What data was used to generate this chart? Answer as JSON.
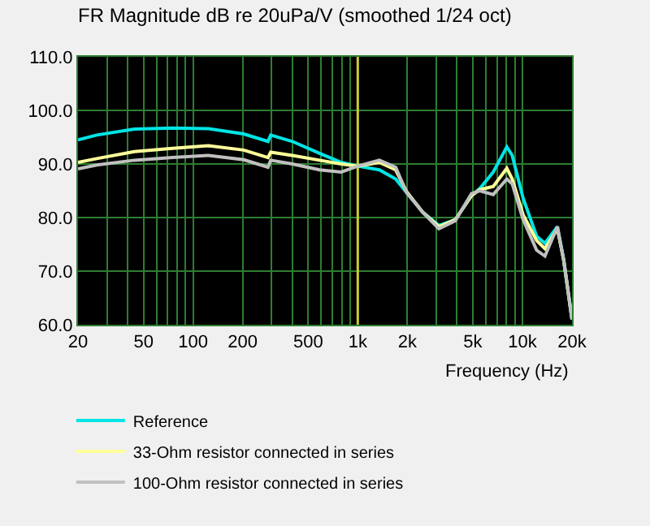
{
  "chart_data": {
    "type": "line",
    "title": "FR Magnitude dB re 20uPa/V (smoothed 1/24 oct)",
    "xlabel": "Frequency (Hz)",
    "log": "x",
    "grid": true,
    "legend": "bottom",
    "line_style": "solid",
    "marker": "none",
    "x": [
      20,
      26,
      44,
      75,
      124,
      203,
      285,
      296,
      401,
      586,
      794,
      1000,
      1352,
      1700,
      1975,
      2480,
      3110,
      3910,
      4910,
      5510,
      6650,
      8040,
      8670,
      10100,
      12200,
      13700,
      16300,
      17800,
      20000
    ],
    "series": [
      {
        "name": "Reference",
        "color": "#00e5e5",
        "values": [
          94.5,
          95.4,
          96.5,
          96.7,
          96.6,
          95.6,
          94.2,
          95.4,
          94.2,
          92.0,
          90.3,
          89.6,
          88.9,
          87.2,
          84.7,
          81.0,
          78.5,
          79.6,
          84.1,
          85.4,
          88.5,
          93.2,
          91.6,
          83.6,
          76.5,
          75.2,
          78.3,
          72.1,
          61.0
        ]
      },
      {
        "name": "33-Ohm resistor connected in series",
        "color": "#ffff99",
        "values": [
          90.3,
          91.0,
          92.3,
          92.9,
          93.4,
          92.6,
          91.2,
          92.2,
          91.6,
          90.7,
          90.0,
          89.6,
          90.3,
          88.9,
          84.9,
          81.0,
          78.3,
          79.6,
          84.1,
          85.2,
          85.8,
          89.2,
          87.2,
          80.5,
          75.7,
          74.2,
          77.9,
          72.1,
          61.0
        ]
      },
      {
        "name": "100-Ohm resistor connected in series",
        "color": "#c0c0c0",
        "values": [
          89.1,
          89.8,
          90.7,
          91.2,
          91.6,
          90.8,
          89.4,
          90.7,
          90.0,
          88.9,
          88.5,
          89.6,
          90.7,
          89.4,
          84.7,
          81.0,
          77.9,
          79.4,
          84.5,
          85.0,
          84.3,
          87.2,
          86.3,
          79.6,
          73.9,
          72.8,
          78.3,
          72.1,
          61.0
        ]
      }
    ],
    "xlim": [
      20,
      20000
    ],
    "ylim": [
      60,
      110
    ],
    "xticks": [
      20,
      {
        "value": 30,
        "label": null
      },
      {
        "value": 40,
        "label": null
      },
      50,
      {
        "value": 60,
        "label": null
      },
      {
        "value": 70,
        "label": null
      },
      {
        "value": 80,
        "label": null
      },
      {
        "value": 90,
        "label": null
      },
      100,
      200,
      {
        "value": 300,
        "label": null
      },
      {
        "value": 400,
        "label": null
      },
      500,
      {
        "value": 600,
        "label": null
      },
      {
        "value": 700,
        "label": null
      },
      {
        "value": 800,
        "label": null
      },
      {
        "value": 900,
        "label": null
      },
      {
        "value": 1000,
        "label": "1k"
      },
      {
        "value": 2000,
        "label": "2k"
      },
      {
        "value": 3000,
        "label": null
      },
      {
        "value": 4000,
        "label": null
      },
      {
        "value": 5000,
        "label": "5k"
      },
      {
        "value": 6000,
        "label": null
      },
      {
        "value": 7000,
        "label": null
      },
      {
        "value": 8000,
        "label": null
      },
      {
        "value": 9000,
        "label": null
      },
      {
        "value": 10000,
        "label": "10k"
      },
      {
        "value": 20000,
        "label": "20k"
      }
    ],
    "yticks": [
      {
        "value": 60,
        "label": "60.0"
      },
      {
        "value": 70,
        "label": "70.0"
      },
      {
        "value": 80,
        "label": "80.0"
      },
      {
        "value": 90,
        "label": "90.0"
      },
      {
        "value": 100,
        "label": "100.0"
      },
      {
        "value": 110,
        "label": "110.0"
      }
    ],
    "ref_lines": [
      {
        "axis": "x",
        "value": 1000,
        "label": null,
        "color": "#cccc33"
      }
    ]
  }
}
